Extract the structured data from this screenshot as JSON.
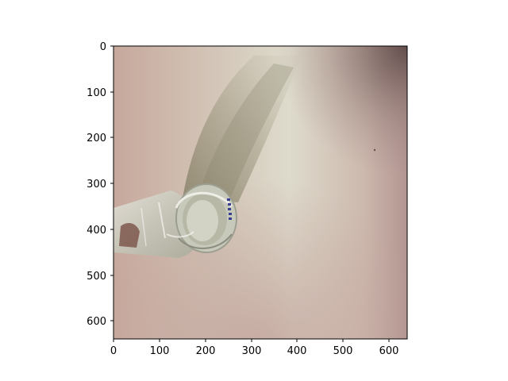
{
  "figure": {
    "kind": "matplotlib imshow of a photograph",
    "image_description_icon": "glass-jar-on-white-surface-photo",
    "x_ticks": [
      "0",
      "100",
      "200",
      "300",
      "400",
      "500",
      "600"
    ],
    "y_ticks": [
      "0",
      "100",
      "200",
      "300",
      "400",
      "500",
      "600"
    ],
    "x_range": [
      0,
      640
    ],
    "y_range": [
      0,
      640
    ],
    "y_inverted": true,
    "colors": {
      "axes_frame": "#000000",
      "background_left": "#c9aa9f",
      "background_center": "#d6d2c3",
      "background_right": "#b89a94",
      "corner_dark": "#6f5b58",
      "shadow": "#8d8a70",
      "glass": "#cfd2c8",
      "label_blue": "#3a3f8f"
    }
  }
}
